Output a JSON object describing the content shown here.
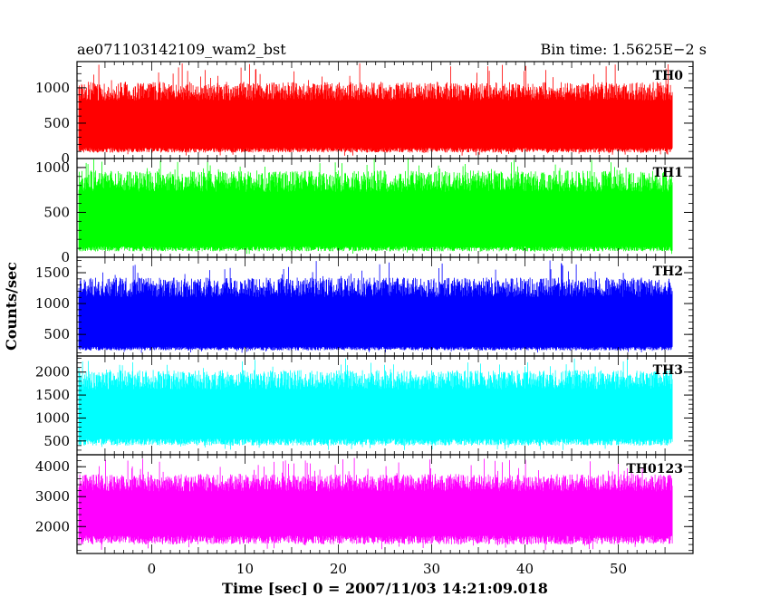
{
  "header": {
    "left_title": "ae071103142109_wam2_bst",
    "right_title": "Bin time: 1.5625E−2 s"
  },
  "chart_data": {
    "type": "line",
    "title": "ae071103142109_wam2_bst",
    "bin_time": "1.5625E−2 s",
    "xlabel": "Time [sec] 0 = 2007/11/03 14:21:09.018",
    "ylabel": "Counts/sec",
    "xlim": [
      -8,
      58
    ],
    "x_data_range": [
      -7.8,
      55.8
    ],
    "xticks": [
      0,
      10,
      20,
      30,
      40,
      50
    ],
    "xtick_labels": [
      "0",
      "10",
      "20",
      "30",
      "40",
      "50"
    ],
    "grid": false,
    "series": [
      {
        "name": "TH0",
        "color": "#ff0000",
        "ylim": [
          0,
          1370
        ],
        "yticks": [
          0,
          500,
          1000
        ],
        "ytick_labels": [
          "0",
          "500",
          "1000"
        ],
        "typical_low": 150,
        "typical_high": 900,
        "peak_max": 1350,
        "trough_min": 40
      },
      {
        "name": "TH1",
        "color": "#00ff00",
        "ylim": [
          0,
          1100
        ],
        "yticks": [
          0,
          500,
          1000
        ],
        "ytick_labels": [
          "0",
          "500",
          "1000"
        ],
        "typical_low": 120,
        "typical_high": 800,
        "peak_max": 1100,
        "trough_min": 30
      },
      {
        "name": "TH2",
        "color": "#0000ff",
        "ylim": [
          150,
          1750
        ],
        "yticks": [
          500,
          1000,
          1500
        ],
        "ytick_labels": [
          "500",
          "1000",
          "1500"
        ],
        "typical_low": 300,
        "typical_high": 1200,
        "peak_max": 1700,
        "trough_min": 200
      },
      {
        "name": "TH3",
        "color": "#00ffff",
        "ylim": [
          200,
          2350
        ],
        "yticks": [
          500,
          1000,
          1500,
          2000
        ],
        "ytick_labels": [
          "500",
          "1000",
          "1500",
          "2000"
        ],
        "typical_low": 550,
        "typical_high": 1750,
        "peak_max": 2300,
        "trough_min": 300
      },
      {
        "name": "TH0123",
        "color": "#ff00ff",
        "ylim": [
          1100,
          4400
        ],
        "yticks": [
          2000,
          3000,
          4000
        ],
        "ytick_labels": [
          "2000",
          "3000",
          "4000"
        ],
        "typical_low": 1700,
        "typical_high": 3350,
        "peak_max": 4300,
        "trough_min": 1200
      }
    ]
  }
}
